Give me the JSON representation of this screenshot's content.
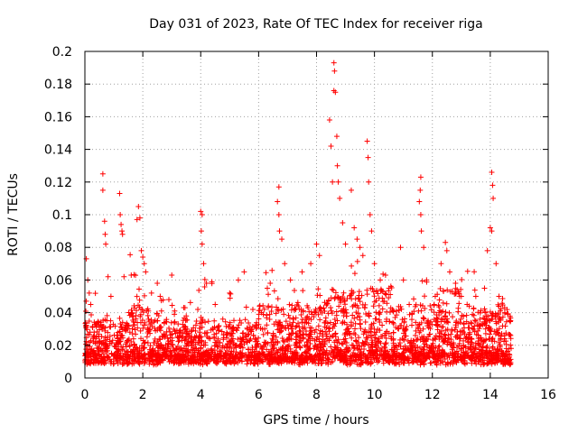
{
  "chart_data": {
    "type": "scatter",
    "title": "Day 031 of 2023, Rate Of TEC Index for receiver riga",
    "xlabel": "GPS time / hours",
    "ylabel": "ROTI / TECUs",
    "xlim": [
      0,
      16
    ],
    "ylim": [
      0,
      0.2
    ],
    "xticks": [
      0,
      2,
      4,
      6,
      8,
      10,
      12,
      14,
      16
    ],
    "xtick_labels": [
      "0",
      "2",
      "4",
      "6",
      "8",
      "10",
      "12",
      "14",
      "16"
    ],
    "yticks": [
      0,
      0.02,
      0.04,
      0.06,
      0.08,
      0.1,
      0.12,
      0.14,
      0.16,
      0.18,
      0.2
    ],
    "ytick_labels": [
      "0",
      "0.02",
      "0.04",
      "0.06",
      "0.08",
      "0.1",
      "0.12",
      "0.14",
      "0.16",
      "0.18",
      "0.2"
    ],
    "grid": true,
    "marker": "+",
    "color": "#ff0000",
    "series": [
      {
        "name": "ROTI",
        "note": "dense point cloud, x from 0 to ~14.7 h; values listed are representative and notable outliers",
        "points": [
          [
            0.05,
            0.073
          ],
          [
            0.1,
            0.06
          ],
          [
            0.15,
            0.052
          ],
          [
            0.2,
            0.045
          ],
          [
            0.62,
            0.125
          ],
          [
            0.62,
            0.115
          ],
          [
            0.68,
            0.096
          ],
          [
            0.7,
            0.088
          ],
          [
            0.72,
            0.082
          ],
          [
            0.8,
            0.062
          ],
          [
            0.9,
            0.05
          ],
          [
            1.2,
            0.113
          ],
          [
            1.22,
            0.1
          ],
          [
            1.25,
            0.094
          ],
          [
            1.28,
            0.09
          ],
          [
            1.3,
            0.088
          ],
          [
            1.35,
            0.062
          ],
          [
            1.6,
            0.063
          ],
          [
            1.8,
            0.097
          ],
          [
            1.85,
            0.105
          ],
          [
            1.9,
            0.098
          ],
          [
            1.95,
            0.078
          ],
          [
            2.0,
            0.074
          ],
          [
            2.05,
            0.07
          ],
          [
            2.1,
            0.065
          ],
          [
            2.3,
            0.052
          ],
          [
            2.5,
            0.058
          ],
          [
            2.6,
            0.05
          ],
          [
            2.9,
            0.048
          ],
          [
            3.0,
            0.063
          ],
          [
            3.5,
            0.038
          ],
          [
            3.9,
            0.042
          ],
          [
            4.0,
            0.102
          ],
          [
            4.05,
            0.1
          ],
          [
            4.02,
            0.09
          ],
          [
            4.05,
            0.082
          ],
          [
            4.1,
            0.07
          ],
          [
            4.2,
            0.058
          ],
          [
            4.5,
            0.045
          ],
          [
            5.0,
            0.052
          ],
          [
            5.3,
            0.06
          ],
          [
            5.5,
            0.065
          ],
          [
            5.8,
            0.042
          ],
          [
            6.1,
            0.04
          ],
          [
            6.3,
            0.055
          ],
          [
            6.4,
            0.058
          ],
          [
            6.7,
            0.117
          ],
          [
            6.65,
            0.108
          ],
          [
            6.7,
            0.1
          ],
          [
            6.72,
            0.09
          ],
          [
            6.8,
            0.085
          ],
          [
            6.9,
            0.07
          ],
          [
            7.1,
            0.06
          ],
          [
            7.5,
            0.065
          ],
          [
            7.8,
            0.07
          ],
          [
            8.0,
            0.082
          ],
          [
            8.1,
            0.075
          ],
          [
            8.45,
            0.158
          ],
          [
            8.5,
            0.142
          ],
          [
            8.55,
            0.12
          ],
          [
            8.6,
            0.193
          ],
          [
            8.62,
            0.188
          ],
          [
            8.6,
            0.176
          ],
          [
            8.65,
            0.175
          ],
          [
            8.7,
            0.148
          ],
          [
            8.72,
            0.13
          ],
          [
            8.75,
            0.12
          ],
          [
            8.8,
            0.11
          ],
          [
            8.9,
            0.095
          ],
          [
            9.0,
            0.082
          ],
          [
            9.2,
            0.115
          ],
          [
            9.3,
            0.092
          ],
          [
            9.4,
            0.085
          ],
          [
            9.5,
            0.08
          ],
          [
            9.6,
            0.075
          ],
          [
            9.75,
            0.145
          ],
          [
            9.78,
            0.135
          ],
          [
            9.8,
            0.12
          ],
          [
            9.85,
            0.1
          ],
          [
            9.9,
            0.09
          ],
          [
            10.0,
            0.07
          ],
          [
            10.2,
            0.06
          ],
          [
            10.5,
            0.055
          ],
          [
            10.9,
            0.08
          ],
          [
            11.0,
            0.06
          ],
          [
            11.2,
            0.045
          ],
          [
            11.6,
            0.123
          ],
          [
            11.58,
            0.115
          ],
          [
            11.55,
            0.108
          ],
          [
            11.6,
            0.1
          ],
          [
            11.62,
            0.09
          ],
          [
            11.7,
            0.08
          ],
          [
            11.8,
            0.06
          ],
          [
            12.1,
            0.05
          ],
          [
            12.3,
            0.07
          ],
          [
            12.45,
            0.083
          ],
          [
            12.5,
            0.078
          ],
          [
            12.6,
            0.065
          ],
          [
            12.8,
            0.058
          ],
          [
            13.0,
            0.05
          ],
          [
            13.2,
            0.045
          ],
          [
            13.5,
            0.05
          ],
          [
            13.8,
            0.055
          ],
          [
            13.9,
            0.078
          ],
          [
            14.0,
            0.092
          ],
          [
            14.05,
            0.126
          ],
          [
            14.08,
            0.118
          ],
          [
            14.1,
            0.11
          ],
          [
            14.05,
            0.09
          ],
          [
            14.2,
            0.07
          ],
          [
            14.3,
            0.05
          ],
          [
            14.5,
            0.04
          ],
          [
            14.7,
            0.035
          ]
        ]
      }
    ]
  }
}
